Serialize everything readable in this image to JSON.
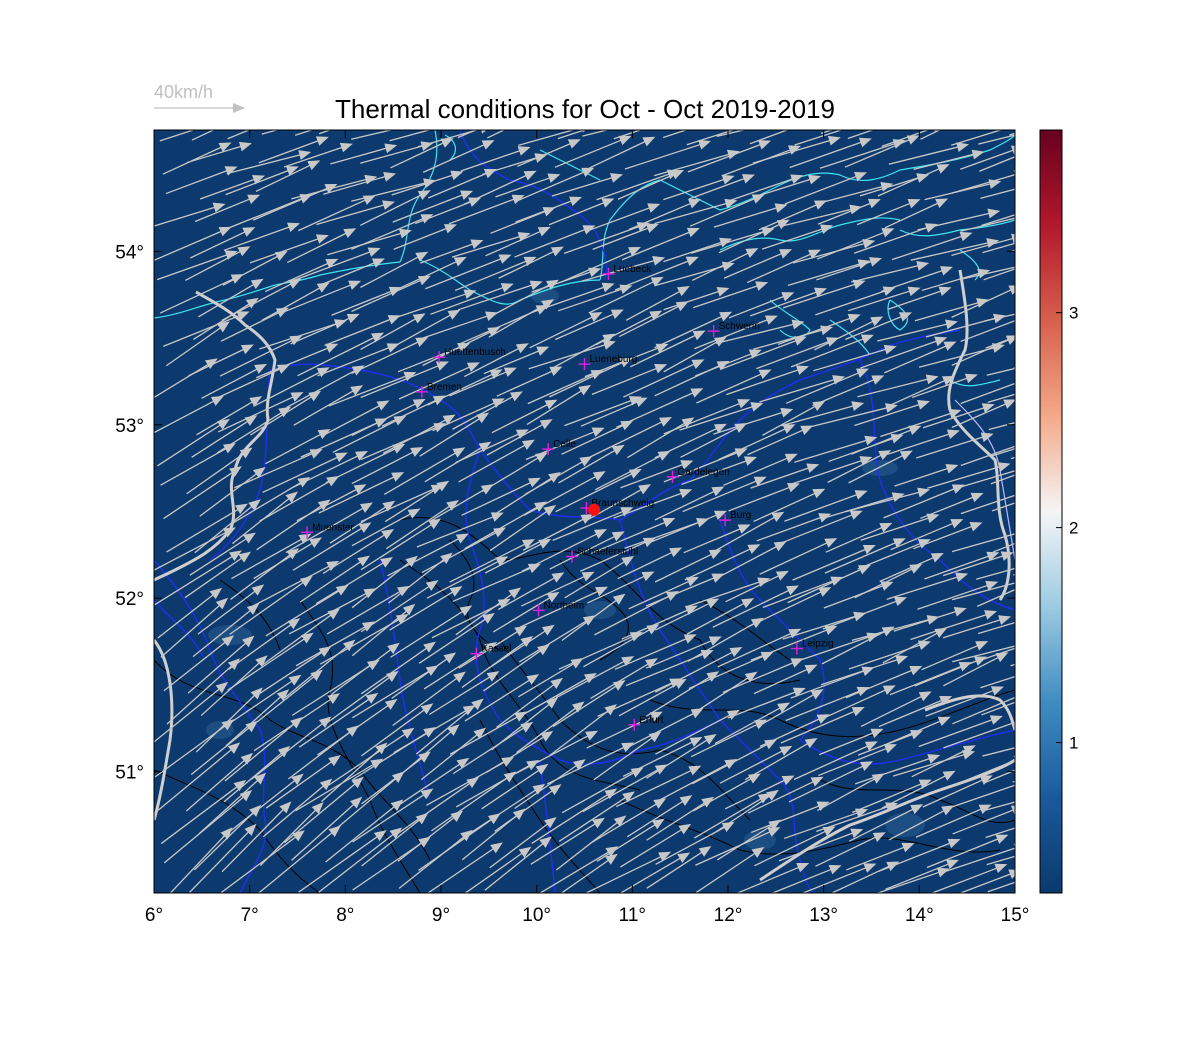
{
  "title": "Thermal conditions for Oct - Oct  2019-2019",
  "wind_scale": {
    "label": "40km/h",
    "speed_kmh": 40
  },
  "map": {
    "lon_range": [
      6,
      15
    ],
    "lat_range": [
      50.3,
      54.7
    ],
    "x_ticks": [
      {
        "value": 6,
        "label": "6°"
      },
      {
        "value": 7,
        "label": "7°"
      },
      {
        "value": 8,
        "label": "8°"
      },
      {
        "value": 9,
        "label": "9°"
      },
      {
        "value": 10,
        "label": "10°"
      },
      {
        "value": 11,
        "label": "11°"
      },
      {
        "value": 12,
        "label": "12°"
      },
      {
        "value": 13,
        "label": "13°"
      },
      {
        "value": 14,
        "label": "14°"
      },
      {
        "value": 15,
        "label": "15°"
      }
    ],
    "y_ticks": [
      {
        "value": 51,
        "label": "51°"
      },
      {
        "value": 52,
        "label": "52°"
      },
      {
        "value": 53,
        "label": "53°"
      },
      {
        "value": 54,
        "label": "54°"
      }
    ],
    "background_color": "#0d3a6e",
    "coast_color": "#3fe3ee",
    "border_color": "#1f2ff0",
    "contour_color": "#000000",
    "marker_color": "#e020e0",
    "home_color": "#ff1010",
    "arrow_color": "#c8c8c8"
  },
  "colorbar": {
    "range": [
      0.3,
      3.85
    ],
    "ticks": [
      {
        "value": 1,
        "label": "1"
      },
      {
        "value": 2,
        "label": "2"
      },
      {
        "value": 3,
        "label": "3"
      }
    ],
    "colors": [
      "#0a3a6e",
      "#1a5a9c",
      "#3f8cc2",
      "#9ccae2",
      "#f5f5f5",
      "#f4a989",
      "#d7604d",
      "#b2182b",
      "#67001f"
    ]
  },
  "cities": [
    {
      "name": "Luebeck",
      "lon": 10.75,
      "lat": 53.87
    },
    {
      "name": "Schwerin",
      "lon": 11.85,
      "lat": 53.54
    },
    {
      "name": "Huettenbusch",
      "lon": 8.98,
      "lat": 53.39
    },
    {
      "name": "Lueneburg",
      "lon": 10.5,
      "lat": 53.35
    },
    {
      "name": "Bremen",
      "lon": 8.8,
      "lat": 53.19
    },
    {
      "name": "Celle",
      "lon": 10.12,
      "lat": 52.86
    },
    {
      "name": "Gardelegen",
      "lon": 11.42,
      "lat": 52.7
    },
    {
      "name": "Braunschweig",
      "lon": 10.52,
      "lat": 52.52
    },
    {
      "name": "Burg",
      "lon": 11.97,
      "lat": 52.45
    },
    {
      "name": "Muenster",
      "lon": 7.6,
      "lat": 52.38
    },
    {
      "name": "Schaeferstuhl",
      "lon": 10.37,
      "lat": 52.24
    },
    {
      "name": "Northeim",
      "lon": 10.02,
      "lat": 51.93
    },
    {
      "name": "Leipzig",
      "lon": 12.72,
      "lat": 51.71
    },
    {
      "name": "Kassel",
      "lon": 9.37,
      "lat": 51.68
    },
    {
      "name": "Erfurt",
      "lon": 11.02,
      "lat": 51.27
    }
  ],
  "home_location": {
    "lon": 10.6,
    "lat": 52.51
  },
  "wind": {
    "mean_u_kmh": 36,
    "mean_v_kmh": 14
  }
}
